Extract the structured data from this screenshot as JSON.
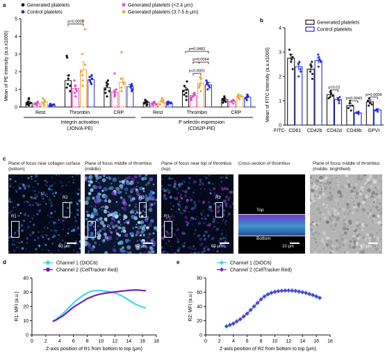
{
  "panel_letters": {
    "a": "a",
    "b": "b",
    "c": "c",
    "d": "d",
    "e": "e"
  },
  "colors": {
    "generated": "#111111",
    "control": "#1f2ad6",
    "small": "#e24ac8",
    "large": "#f2a23a",
    "ch1": "#3fd6ee",
    "ch2": "#6d1fbf",
    "ch2e": "#7a2ad0"
  },
  "panel_a": {
    "ylabel": "Mean of PE intensity (a.u.x1000)",
    "legend": [
      "Generated platelets",
      "Control platelets",
      "Generated platelets (<2.4 μm)",
      "Generated platelets (3.7-5.6 μm)"
    ],
    "group_labels": [
      "Integrin activation",
      "(JON/A-PE)",
      "P selectin expression",
      "(CD62P-PE)"
    ],
    "categories": [
      "Rest",
      "Thrombin",
      "CRP",
      "Rest",
      "Thrombin",
      "CRP"
    ],
    "pvalues": [
      "p=0.0006",
      "p=0.0482",
      "p=0.0064",
      "p<0.0001"
    ]
  },
  "panel_b": {
    "ylabel": "Mean of FITC intensity (a.u.x1000)",
    "legend": [
      "Generated platelets",
      "Control platelets"
    ],
    "xlead": "FITC-",
    "categories": [
      "CD61",
      "CD42b",
      "CD42d",
      "CD49b",
      "GPVI"
    ],
    "pvalues": [
      "p=0.02",
      "p=0.0043",
      "p=0.0008"
    ]
  },
  "panel_c": {
    "captions": [
      "Plane of focus near collagen surface (bottom)",
      "Plane of focus middle of thrombus (middle)",
      "Plane of focus near top of thrombus (top)",
      "Cross-section of  thrombus",
      "Plane of focus middle of thrombus (middle, brightfield)"
    ],
    "region_labels": [
      "R1",
      "R2"
    ],
    "scale_60": "60 μm",
    "scale_10": "10 μm",
    "xsec_top": "Top",
    "xsec_bottom": "Bottom"
  },
  "chart_data": [
    {
      "panel": "a",
      "type": "bar",
      "title": "",
      "ylabel": "Mean of PE intensity (a.u.x1000)",
      "ylim": [
        0,
        5
      ],
      "yticks": [
        0,
        1,
        2,
        3,
        4,
        5
      ],
      "categories": [
        "Rest",
        "Thrombin",
        "CRP",
        "Rest",
        "Thrombin",
        "CRP"
      ],
      "series": [
        {
          "name": "Generated platelets",
          "values": [
            0.25,
            1.5,
            1.1,
            0.27,
            0.95,
            0.42
          ]
        },
        {
          "name": "Generated platelets (<2.4 μm)",
          "values": [
            0.2,
            1.05,
            0.85,
            0.2,
            0.65,
            0.33
          ]
        },
        {
          "name": "Generated platelets (3.7-5.6 μm)",
          "values": [
            0.3,
            2.1,
            1.4,
            0.3,
            1.35,
            0.6
          ]
        },
        {
          "name": "Control platelets",
          "values": [
            0.12,
            1.55,
            1.15,
            0.22,
            1.25,
            0.55
          ]
        }
      ],
      "errors": [
        [
          0.08,
          0.3,
          0.2,
          0.06,
          0.18,
          0.08
        ],
        [
          0.06,
          0.2,
          0.12,
          0.05,
          0.12,
          0.06
        ],
        [
          0.12,
          0.45,
          0.25,
          0.1,
          0.3,
          0.1
        ],
        [
          0.04,
          0.18,
          0.12,
          0.05,
          0.15,
          0.07
        ]
      ],
      "points": [
        [
          [
            0.1,
            0.2,
            0.25,
            0.3,
            0.45,
            0.5,
            0.15,
            0.22
          ],
          [
            0.9,
            1.1,
            1.3,
            1.6,
            1.8,
            2.8,
            2.9,
            1.2
          ],
          [
            0.6,
            0.8,
            1.0,
            1.2,
            1.5,
            1.3,
            0.9,
            1.4
          ],
          [
            0.1,
            0.2,
            0.25,
            0.3,
            0.4,
            0.35,
            0.15,
            0.28
          ],
          [
            0.4,
            0.6,
            0.8,
            1.0,
            1.2,
            1.45,
            0.7,
            0.9
          ],
          [
            0.25,
            0.35,
            0.4,
            0.5,
            0.6,
            0.45,
            0.3,
            0.5
          ]
        ],
        [
          [
            0.1,
            0.2,
            0.15,
            0.3,
            0.25,
            0.18
          ],
          [
            0.6,
            0.8,
            1.0,
            1.2,
            1.5,
            0.9
          ],
          [
            0.6,
            0.7,
            0.9,
            1.0,
            0.8,
            1.9
          ],
          [
            0.1,
            0.15,
            0.2,
            0.25,
            0.3,
            0.22
          ],
          [
            0.4,
            0.5,
            0.6,
            0.8,
            0.7,
            0.55
          ],
          [
            0.2,
            0.3,
            0.35,
            0.4,
            0.38,
            0.28
          ]
        ],
        [
          [
            0.1,
            0.2,
            0.3,
            0.5,
            0.4,
            0.25
          ],
          [
            1.2,
            1.5,
            2.0,
            2.4,
            3.0,
            4.4,
            4.9,
            1.8
          ],
          [
            0.9,
            1.1,
            1.4,
            1.6,
            3.1,
            1.3
          ],
          [
            0.15,
            0.25,
            0.3,
            0.4,
            0.5,
            0.35
          ],
          [
            0.9,
            1.1,
            1.3,
            1.6,
            2.5,
            1.7,
            1.2
          ],
          [
            0.45,
            0.55,
            0.6,
            0.7,
            0.65,
            0.5
          ]
        ],
        [
          [
            0.05,
            0.1,
            0.12,
            0.15,
            0.18,
            0.08
          ],
          [
            1.3,
            1.4,
            1.6,
            1.8,
            1.7,
            1.5
          ],
          [
            0.9,
            1.0,
            1.2,
            1.3,
            1.25,
            1.1
          ],
          [
            0.15,
            0.2,
            0.25,
            0.3,
            0.28,
            0.18
          ],
          [
            1.0,
            1.1,
            1.3,
            1.4,
            1.5,
            1.2
          ],
          [
            0.4,
            0.5,
            0.6,
            0.7,
            0.55,
            0.62
          ]
        ]
      ],
      "brackets": [
        {
          "label": "p=0.0006",
          "cat": 1,
          "from": 0,
          "to": 2,
          "y": 4.7
        },
        {
          "label": "p=0.0482",
          "cat": 4,
          "from": 0,
          "to": 3,
          "y": 3.15
        },
        {
          "label": "p=0.0064",
          "cat": 4,
          "from": 1,
          "to": 3,
          "y": 2.55
        },
        {
          "label": "p<0.0001",
          "cat": 4,
          "from": 1,
          "to": 2,
          "y": 1.9
        }
      ]
    },
    {
      "panel": "b",
      "type": "bar",
      "title": "",
      "ylabel": "Mean of FITC intensity (a.u.x1000)",
      "ylim": [
        0,
        4
      ],
      "yticks": [
        0,
        1,
        2,
        3,
        4
      ],
      "categories": [
        "CD61",
        "CD42b",
        "CD42d",
        "CD49b",
        "GPVI"
      ],
      "series": [
        {
          "name": "Generated platelets",
          "values": [
            2.75,
            2.3,
            1.25,
            0.8,
            0.95
          ]
        },
        {
          "name": "Control platelets",
          "values": [
            2.4,
            2.65,
            1.05,
            0.5,
            0.62
          ]
        }
      ],
      "errors": [
        [
          0.15,
          0.15,
          0.1,
          0.1,
          0.08
        ],
        [
          0.15,
          0.12,
          0.08,
          0.04,
          0.05
        ]
      ],
      "points": [
        [
          [
            2.3,
            2.6,
            2.9,
            3.1,
            2.8,
            2.7
          ],
          [
            1.9,
            2.2,
            2.5,
            2.4,
            2.6,
            2.1
          ],
          [
            1.1,
            1.2,
            1.4,
            1.3,
            1.15
          ],
          [
            0.6,
            0.7,
            0.9,
            1.0,
            0.8
          ],
          [
            0.8,
            0.9,
            1.1,
            1.0,
            0.85
          ]
        ],
        [
          [
            2.0,
            2.3,
            2.6,
            2.5,
            2.2
          ],
          [
            2.4,
            2.6,
            2.8,
            2.7,
            2.9
          ],
          [
            0.9,
            1.0,
            1.1,
            1.05,
            1.15
          ],
          [
            0.45,
            0.5,
            0.55,
            0.52
          ],
          [
            0.55,
            0.6,
            0.65,
            0.62
          ]
        ]
      ],
      "brackets": [
        {
          "label": "p=0.02",
          "cat": 2,
          "y": 1.45
        },
        {
          "label": "p=0.0043",
          "cat": 3,
          "y": 1.0
        },
        {
          "label": "p=0.0008",
          "cat": 4,
          "y": 1.15
        }
      ]
    },
    {
      "panel": "d",
      "type": "line",
      "title": "",
      "xlabel": "Z-axis position of R1 from bottom to top (μm)",
      "ylabel": "R1: MFI (a.u.)",
      "xlim": [
        0,
        18
      ],
      "ylim": [
        0,
        40
      ],
      "xticks": [
        0,
        2,
        4,
        6,
        8,
        10,
        12,
        14,
        16,
        18
      ],
      "yticks": [
        0,
        10,
        20,
        30,
        40
      ],
      "x": [
        3,
        3.5,
        4,
        4.5,
        5,
        5.5,
        6,
        6.5,
        7,
        7.5,
        8,
        8.5,
        9,
        9.5,
        10,
        10.5,
        11,
        11.5,
        12,
        12.5,
        13,
        13.5,
        14,
        14.5,
        15,
        15.5,
        16,
        16.5
      ],
      "series": [
        {
          "name": "Channel 1 (DiOC6)",
          "values": [
            9.5,
            11,
            13,
            15,
            17.5,
            20,
            22.5,
            24.5,
            26.5,
            28,
            29.5,
            30.5,
            31,
            31.2,
            31,
            30.8,
            30.5,
            30,
            29.5,
            28.5,
            27.5,
            26,
            24.5,
            23,
            21.5,
            20.5,
            19.5,
            19
          ]
        },
        {
          "name": "Channel 2 (CellTracker Red)",
          "values": [
            9.5,
            10.5,
            12,
            13.5,
            15.5,
            17.5,
            19.5,
            21,
            22.5,
            24,
            25.5,
            26.5,
            27.5,
            28.2,
            28.8,
            29.2,
            29.6,
            29.9,
            30.2,
            30.5,
            30.8,
            31,
            31.3,
            31.5,
            31.6,
            31.5,
            31.2,
            31
          ]
        }
      ]
    },
    {
      "panel": "e",
      "type": "line",
      "title": "",
      "xlabel": "Z-axis position of R2 from bottom to top (μm)",
      "ylabel": "R2: MFI (a.u.)",
      "xlim": [
        0,
        18
      ],
      "ylim": [
        0,
        80
      ],
      "xticks": [
        0,
        2,
        4,
        6,
        8,
        10,
        12,
        14,
        16,
        18
      ],
      "yticks": [
        0,
        20,
        40,
        60,
        80
      ],
      "x": [
        3,
        3.5,
        4,
        4.5,
        5,
        5.5,
        6,
        6.5,
        7,
        7.5,
        8,
        8.5,
        9,
        9.5,
        10,
        10.5,
        11,
        11.5,
        12,
        12.5,
        13,
        13.5,
        14,
        14.5,
        15,
        15.5,
        16,
        16.5
      ],
      "series": [
        {
          "name": "Channel 1 (DiOC6)",
          "values": [
            12,
            14,
            16,
            19,
            22,
            26,
            30,
            35,
            40,
            45,
            50,
            54,
            57,
            59,
            60.5,
            61.5,
            62,
            62.3,
            62.4,
            62.2,
            61.8,
            61,
            60,
            59,
            57.5,
            56,
            54,
            52
          ]
        },
        {
          "name": "Channel 2 (CellTracker Red)",
          "values": [
            12,
            14,
            16,
            19,
            22,
            26,
            30,
            35,
            40,
            45,
            50,
            54,
            57,
            59,
            60.5,
            61.5,
            62,
            62.3,
            62.4,
            62.2,
            61.8,
            61,
            60,
            59,
            57.5,
            56,
            54,
            52
          ]
        }
      ]
    }
  ]
}
